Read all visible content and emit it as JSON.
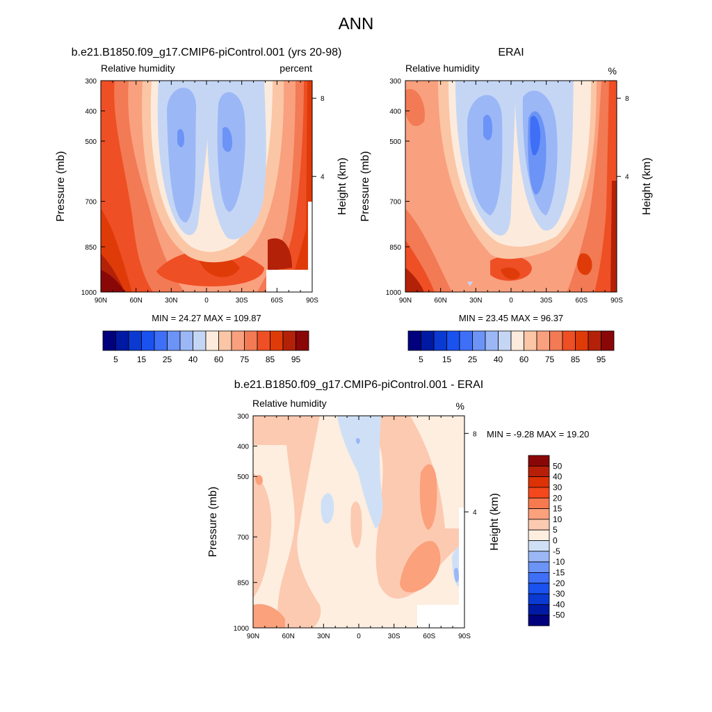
{
  "figure": {
    "title": "ANN",
    "colors": {
      "abs": [
        "#01017e",
        "#0019a3",
        "#0a3ad1",
        "#1a52f0",
        "#3e6ff6",
        "#6c93f6",
        "#9bb7f6",
        "#c5d6f5",
        "#fcebdc",
        "#fbc6a6",
        "#f9a07e",
        "#f27a54",
        "#ef4f24",
        "#df3b08",
        "#b32108",
        "#8a0708"
      ],
      "diff": [
        "#01017e",
        "#0019a3",
        "#0a3ad1",
        "#1a52f0",
        "#3e6ff6",
        "#6c93f6",
        "#9bb7f6",
        "#cfe0f6",
        "#fdeee0",
        "#fccab1",
        "#fba17c",
        "#f77a4f",
        "#f4481c",
        "#dd3206",
        "#b81f08",
        "#8a0708"
      ]
    }
  },
  "chart_data": [
    {
      "type": "heatmap",
      "title": "b.e21.B1850.f09_g17.CMIP6-piControl.001 (yrs 20-98)",
      "left_label": "Relative humidity",
      "right_label": "percent",
      "ylabel": "Pressure (mb)",
      "ylabel_right": "Height (km)",
      "x_ticks": [
        "90N",
        "60N",
        "30N",
        "0",
        "30S",
        "60S",
        "90S"
      ],
      "y_ticks": [
        "300",
        "400",
        "500",
        "700",
        "850",
        "1000"
      ],
      "height_ticks": [
        "8",
        "4"
      ],
      "min_max_text": "MIN =  24.27  MAX = 109.87",
      "colorbar_labels": [
        "5",
        "15",
        "25",
        "40",
        "60",
        "75",
        "85",
        "95"
      ],
      "min": 24.27,
      "max": 109.87,
      "grid": false
    },
    {
      "type": "heatmap",
      "title": "ERAI",
      "left_label": "Relative humidity",
      "right_label": "%",
      "ylabel": "Pressure (mb)",
      "ylabel_right": "Height (km)",
      "x_ticks": [
        "90N",
        "60N",
        "30N",
        "0",
        "30S",
        "60S",
        "90S"
      ],
      "y_ticks": [
        "300",
        "400",
        "500",
        "700",
        "850",
        "1000"
      ],
      "height_ticks": [
        "8",
        "4"
      ],
      "min_max_text": "MIN =  23.45  MAX =  96.37",
      "colorbar_labels": [
        "5",
        "15",
        "25",
        "40",
        "60",
        "75",
        "85",
        "95"
      ],
      "min": 23.45,
      "max": 96.37,
      "grid": false
    },
    {
      "type": "heatmap",
      "title": "b.e21.B1850.f09_g17.CMIP6-piControl.001 - ERAI",
      "left_label": "Relative humidity",
      "right_label": "%",
      "ylabel": "Pressure (mb)",
      "ylabel_right": "Height (km)",
      "x_ticks": [
        "90N",
        "60N",
        "30N",
        "0",
        "30S",
        "60S",
        "90S"
      ],
      "y_ticks": [
        "300",
        "400",
        "500",
        "700",
        "850",
        "1000"
      ],
      "height_ticks": [
        "8",
        "4"
      ],
      "min_max_text": "MIN =  -9.28  MAX =  19.20",
      "colorbar_labels": [
        "50",
        "40",
        "30",
        "20",
        "15",
        "10",
        "5",
        "0",
        "-5",
        "-10",
        "-15",
        "-20",
        "-30",
        "-40",
        "-50"
      ],
      "min": -9.28,
      "max": 19.2,
      "grid": false
    }
  ]
}
